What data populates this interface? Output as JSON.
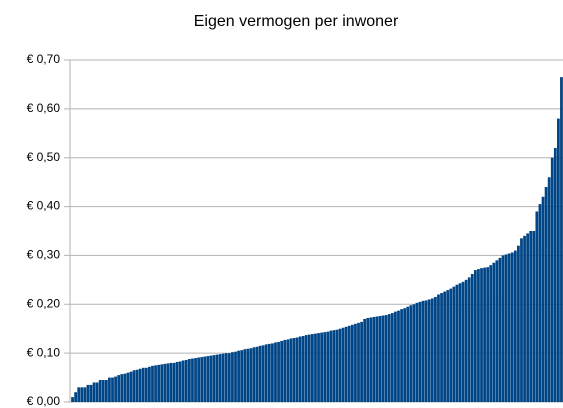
{
  "chart_data": {
    "type": "bar",
    "title": "Eigen vermogen per inwoner",
    "color": "#004586",
    "grid": true,
    "ylim": [
      0,
      0.7
    ],
    "yticks": [
      {
        "value": 0,
        "label": "€ 0,00"
      },
      {
        "value": 0.1,
        "label": "€ 0,10"
      },
      {
        "value": 0.2,
        "label": "€ 0,20"
      },
      {
        "value": 0.3,
        "label": "€ 0,30"
      },
      {
        "value": 0.4,
        "label": "€ 0,40"
      },
      {
        "value": 0.5,
        "label": "€ 0,50"
      },
      {
        "value": 0.6,
        "label": "€ 0,60"
      },
      {
        "value": 0.7,
        "label": "€ 0,70"
      }
    ],
    "categories": [
      null,
      null,
      null,
      null,
      null,
      null,
      null,
      null,
      null,
      null,
      null,
      null,
      null,
      null,
      null,
      null,
      null,
      null,
      null,
      null,
      null,
      null,
      null,
      null,
      null,
      null,
      null,
      null,
      null,
      null,
      null,
      null,
      null,
      null,
      null,
      null,
      null,
      null,
      null,
      null,
      null,
      null,
      null,
      null,
      null,
      null,
      null,
      null,
      null,
      null,
      null,
      null,
      null,
      null,
      null,
      null,
      null,
      null,
      null,
      null,
      null,
      null,
      null,
      null,
      null,
      null,
      null,
      null,
      null,
      null,
      null,
      null,
      null,
      null,
      null,
      null,
      null,
      null,
      null,
      null,
      null,
      null,
      null,
      null,
      null,
      null,
      null,
      null,
      null,
      null,
      null,
      null,
      null,
      null,
      null,
      null,
      null,
      null,
      null,
      null,
      null,
      null,
      null,
      null,
      null,
      null,
      null,
      null,
      null,
      null,
      null,
      null,
      null,
      null,
      null,
      null,
      null,
      null,
      null,
      null,
      null,
      null,
      null,
      null,
      null,
      null,
      null,
      null,
      null,
      null,
      null,
      null,
      null,
      null,
      null,
      null,
      null,
      null,
      null,
      null,
      null,
      null,
      null,
      null,
      null,
      null,
      null,
      null,
      null,
      null,
      null,
      null,
      null,
      null,
      null,
      null,
      null,
      null,
      null,
      null
    ],
    "values": [
      0.01,
      0.02,
      0.03,
      0.03,
      0.03,
      0.035,
      0.035,
      0.04,
      0.04,
      0.045,
      0.045,
      0.045,
      0.05,
      0.05,
      0.052,
      0.055,
      0.057,
      0.058,
      0.06,
      0.062,
      0.065,
      0.066,
      0.068,
      0.07,
      0.07,
      0.072,
      0.074,
      0.075,
      0.076,
      0.077,
      0.078,
      0.079,
      0.08,
      0.08,
      0.082,
      0.083,
      0.085,
      0.086,
      0.088,
      0.089,
      0.09,
      0.091,
      0.092,
      0.093,
      0.094,
      0.095,
      0.096,
      0.097,
      0.098,
      0.099,
      0.1,
      0.1,
      0.102,
      0.103,
      0.105,
      0.106,
      0.108,
      0.109,
      0.11,
      0.112,
      0.113,
      0.115,
      0.116,
      0.118,
      0.119,
      0.12,
      0.122,
      0.123,
      0.125,
      0.127,
      0.128,
      0.13,
      0.131,
      0.132,
      0.134,
      0.135,
      0.137,
      0.138,
      0.139,
      0.14,
      0.141,
      0.142,
      0.143,
      0.144,
      0.146,
      0.147,
      0.148,
      0.15,
      0.152,
      0.154,
      0.156,
      0.158,
      0.16,
      0.162,
      0.164,
      0.17,
      0.172,
      0.173,
      0.174,
      0.175,
      0.176,
      0.177,
      0.178,
      0.18,
      0.182,
      0.185,
      0.187,
      0.19,
      0.192,
      0.195,
      0.198,
      0.2,
      0.203,
      0.205,
      0.207,
      0.208,
      0.21,
      0.212,
      0.215,
      0.22,
      0.223,
      0.226,
      0.229,
      0.232,
      0.236,
      0.24,
      0.243,
      0.246,
      0.25,
      0.255,
      0.262,
      0.27,
      0.272,
      0.274,
      0.275,
      0.276,
      0.28,
      0.285,
      0.29,
      0.295,
      0.3,
      0.302,
      0.304,
      0.306,
      0.31,
      0.32,
      0.335,
      0.34,
      0.345,
      0.35,
      0.35,
      0.39,
      0.405,
      0.42,
      0.44,
      0.46,
      0.5,
      0.52,
      0.58,
      0.665
    ]
  }
}
